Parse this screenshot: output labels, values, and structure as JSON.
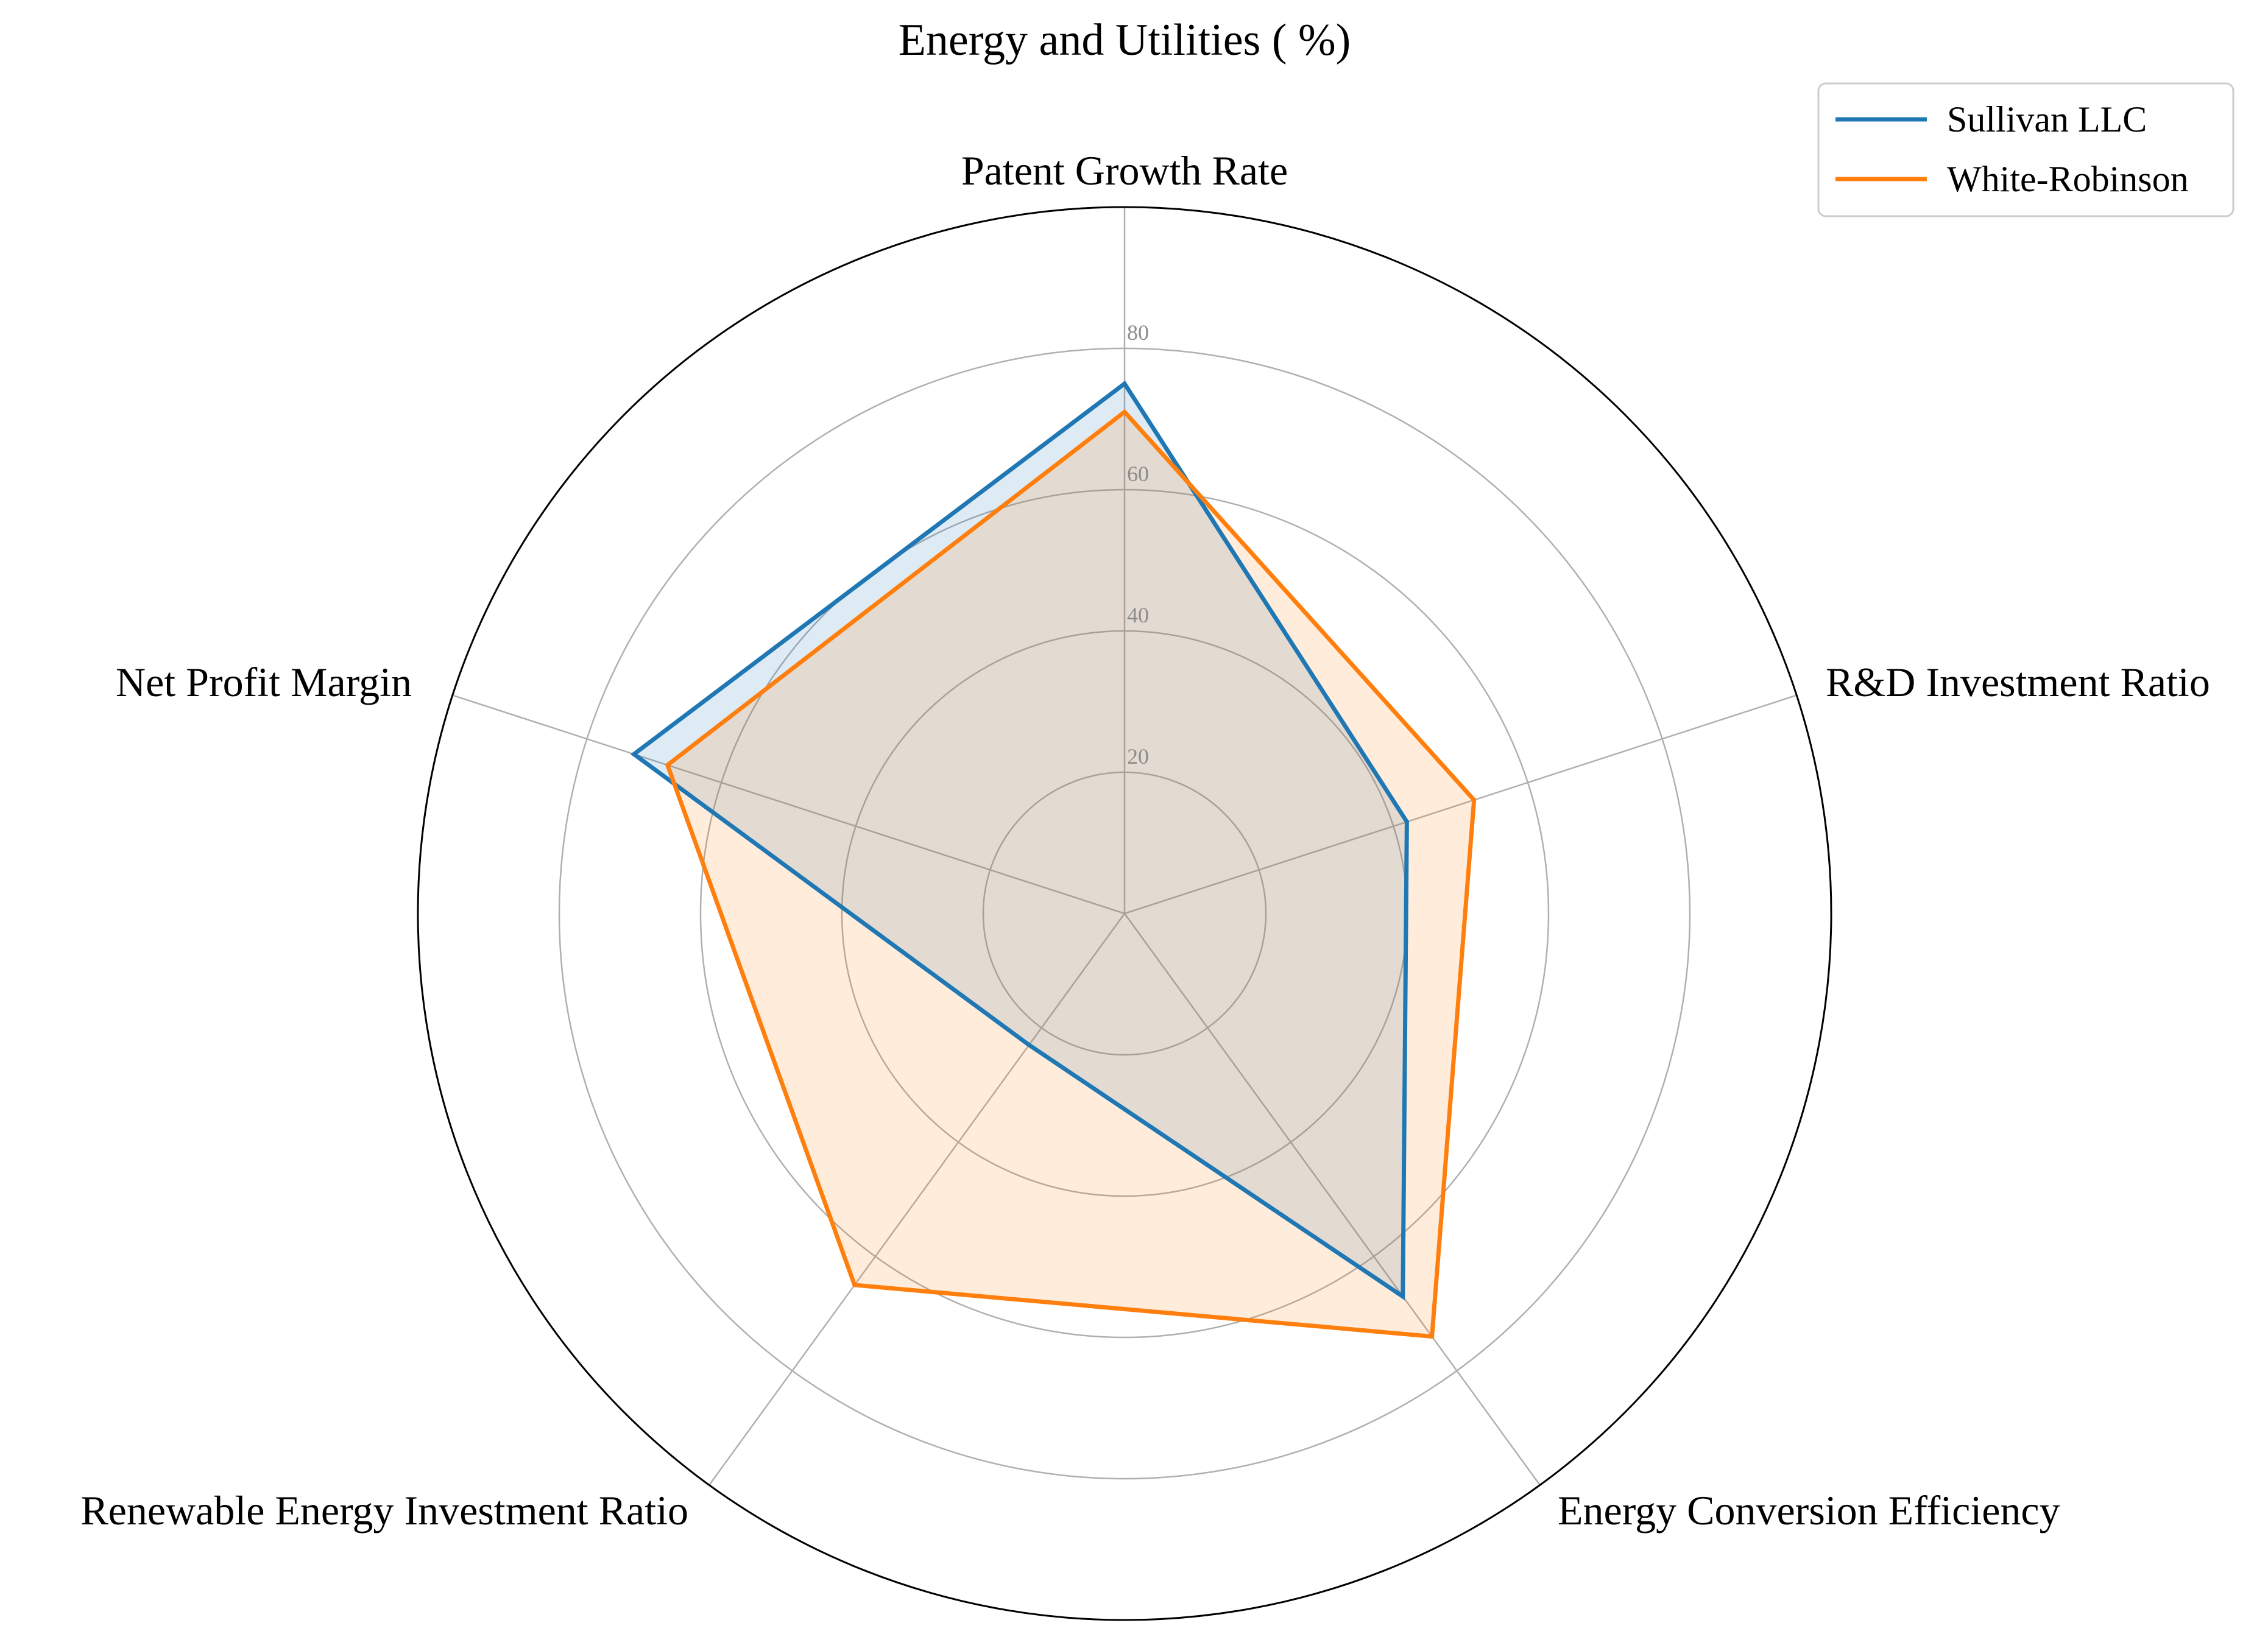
{
  "chart_data": {
    "type": "radar",
    "title": "Energy and Utilities ( %)",
    "axes": [
      "Patent Growth Rate",
      "R&D Investment Ratio",
      "Energy Conversion Efficiency",
      "Renewable Energy Investment Ratio",
      "Net Profit Margin"
    ],
    "radial_ticks": [
      20,
      40,
      60,
      80
    ],
    "radial_tick_labels": [
      "20",
      "40",
      "60",
      "80"
    ],
    "rlim": [
      0,
      100
    ],
    "grid": true,
    "legend_position": "top-right",
    "series": [
      {
        "name": "Sullivan LLC",
        "color": "#1f77b4",
        "values": [
          75,
          42,
          67,
          23,
          73
        ]
      },
      {
        "name": "White-Robinson",
        "color": "#ff7f0e",
        "values": [
          71,
          52,
          74,
          65,
          68
        ]
      }
    ]
  }
}
